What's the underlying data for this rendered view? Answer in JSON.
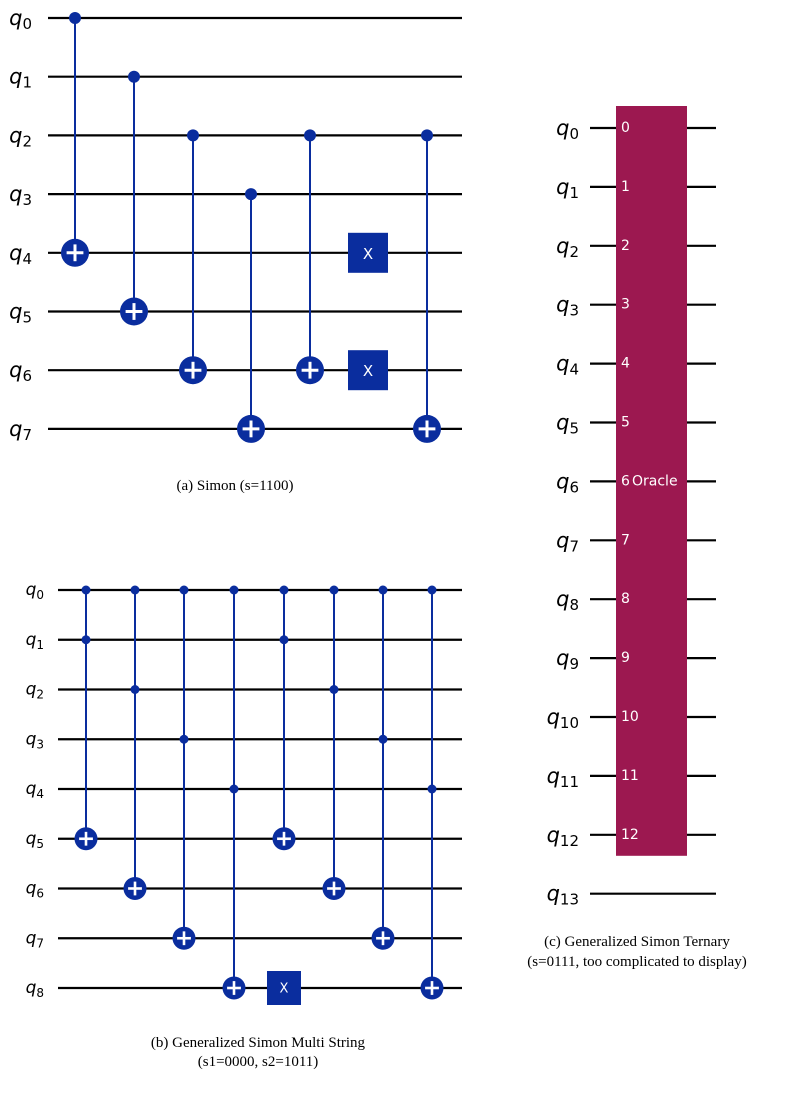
{
  "colors": {
    "wire": "#000000",
    "cnot": "#0a2d9e",
    "oracle": "#9c1850",
    "gate_text": "#ffffff"
  },
  "panel_a": {
    "caption": "(a) Simon (s=1100)",
    "qubits": [
      "0",
      "1",
      "2",
      "3",
      "4",
      "5",
      "6",
      "7"
    ],
    "gates": [
      {
        "type": "cx",
        "control": 0,
        "target": 4
      },
      {
        "type": "cx",
        "control": 1,
        "target": 5
      },
      {
        "type": "cx",
        "control": 2,
        "target": 6
      },
      {
        "type": "cx",
        "control": 3,
        "target": 7
      },
      {
        "type": "cx",
        "control": 2,
        "target": 6
      },
      {
        "type": "x",
        "qubits": [
          4,
          6
        ],
        "label": "X"
      },
      {
        "type": "cx",
        "control": 2,
        "target": 7
      }
    ]
  },
  "panel_b": {
    "caption_line1": "(b) Generalized Simon Multi String",
    "caption_line2": "(s1=0000, s2=1011)",
    "qubits": [
      "0",
      "1",
      "2",
      "3",
      "4",
      "5",
      "6",
      "7",
      "8"
    ],
    "gates": [
      {
        "type": "ccx",
        "controls": [
          0,
          1
        ],
        "target": 5
      },
      {
        "type": "ccx",
        "controls": [
          0,
          2
        ],
        "target": 6
      },
      {
        "type": "ccx",
        "controls": [
          0,
          3
        ],
        "target": 7
      },
      {
        "type": "ccx",
        "controls": [
          0,
          4
        ],
        "target": 8
      },
      {
        "type": "x",
        "qubits": [
          8
        ],
        "label": "X"
      },
      {
        "type": "ccx",
        "controls": [
          0,
          1
        ],
        "target": 5
      },
      {
        "type": "ccx",
        "controls": [
          0,
          2
        ],
        "target": 6
      },
      {
        "type": "ccx",
        "controls": [
          0,
          3
        ],
        "target": 7
      },
      {
        "type": "ccx",
        "controls": [
          0,
          4
        ],
        "target": 8
      }
    ]
  },
  "panel_c": {
    "caption_line1": "(c) Generalized Simon Ternary",
    "caption_line2": "(s=0111, too complicated to display)",
    "qubits": [
      "0",
      "1",
      "2",
      "3",
      "4",
      "5",
      "6",
      "7",
      "8",
      "9",
      "10",
      "11",
      "12",
      "13"
    ],
    "oracle_label": "Oracle",
    "oracle_port_labels": [
      "0",
      "1",
      "2",
      "3",
      "4",
      "5",
      "6",
      "7",
      "8",
      "9",
      "10",
      "11",
      "12"
    ]
  }
}
